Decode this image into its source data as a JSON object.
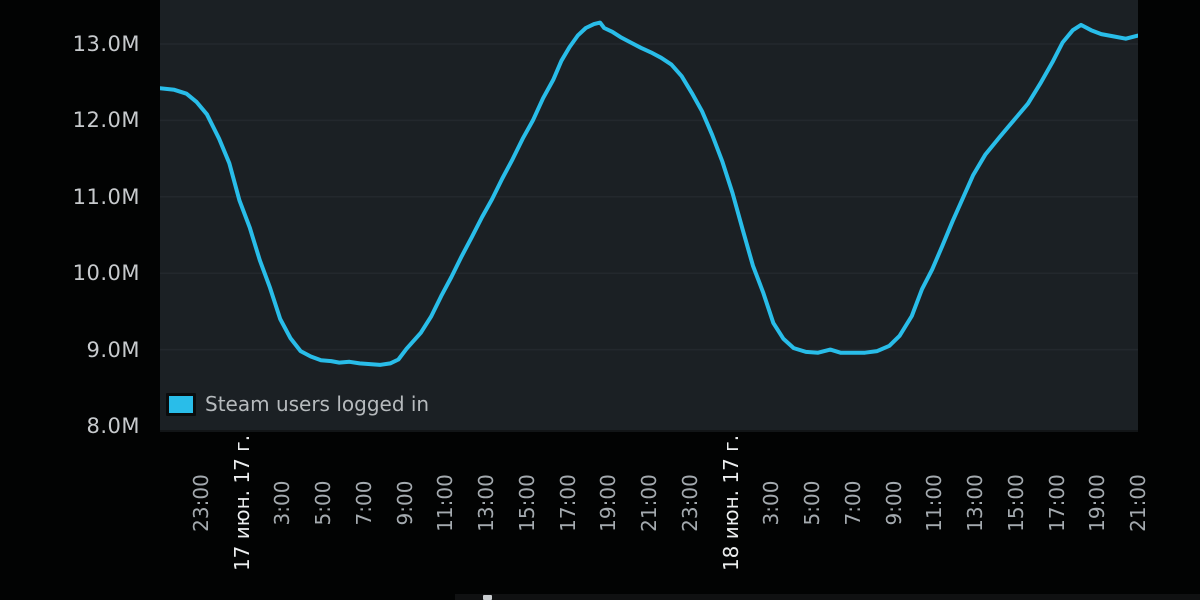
{
  "chart_data": {
    "type": "line",
    "title": "",
    "xlabel": "",
    "ylabel": "",
    "grid": "horizontal",
    "legend_position": "bottom-left-inside",
    "x_unit_hours_origin": "21:00 16 июн. 17 г.",
    "xlim_hours": [
      0,
      48
    ],
    "ylim_millions": [
      8.0,
      13.58
    ],
    "y_tick_labels": [
      "13.0M",
      "12.0M",
      "11.0M",
      "10.0M",
      "9.0M",
      "8.0M"
    ],
    "y_tick_values": [
      13,
      12,
      11,
      10,
      9,
      8
    ],
    "x_ticks": [
      {
        "t": 2,
        "label": "23:00",
        "type": "time"
      },
      {
        "t": 4,
        "label": "17 июн. 17 г.",
        "type": "date"
      },
      {
        "t": 6,
        "label": "3:00",
        "type": "time"
      },
      {
        "t": 8,
        "label": "5:00",
        "type": "time"
      },
      {
        "t": 10,
        "label": "7:00",
        "type": "time"
      },
      {
        "t": 12,
        "label": "9:00",
        "type": "time"
      },
      {
        "t": 14,
        "label": "11:00",
        "type": "time"
      },
      {
        "t": 16,
        "label": "13:00",
        "type": "time"
      },
      {
        "t": 18,
        "label": "15:00",
        "type": "time"
      },
      {
        "t": 20,
        "label": "17:00",
        "type": "time"
      },
      {
        "t": 22,
        "label": "19:00",
        "type": "time"
      },
      {
        "t": 24,
        "label": "21:00",
        "type": "time"
      },
      {
        "t": 26,
        "label": "23:00",
        "type": "time"
      },
      {
        "t": 28,
        "label": "18 июн. 17 г.",
        "type": "date"
      },
      {
        "t": 30,
        "label": "3:00",
        "type": "time"
      },
      {
        "t": 32,
        "label": "5:00",
        "type": "time"
      },
      {
        "t": 34,
        "label": "7:00",
        "type": "time"
      },
      {
        "t": 36,
        "label": "9:00",
        "type": "time"
      },
      {
        "t": 38,
        "label": "11:00",
        "type": "time"
      },
      {
        "t": 40,
        "label": "13:00",
        "type": "time"
      },
      {
        "t": 42,
        "label": "15:00",
        "type": "time"
      },
      {
        "t": 44,
        "label": "17:00",
        "type": "time"
      },
      {
        "t": 46,
        "label": "19:00",
        "type": "time"
      },
      {
        "t": 48,
        "label": "21:00",
        "type": "time"
      }
    ],
    "series": [
      {
        "name": "Steam users logged in",
        "color": "#29bde9",
        "points_hours_vs_millions": [
          [
            0,
            12.42
          ],
          [
            0.7,
            12.4
          ],
          [
            1.3,
            12.35
          ],
          [
            1.8,
            12.24
          ],
          [
            2.3,
            12.08
          ],
          [
            2.9,
            11.76
          ],
          [
            3.4,
            11.44
          ],
          [
            3.9,
            10.95
          ],
          [
            4.4,
            10.6
          ],
          [
            4.9,
            10.17
          ],
          [
            5.4,
            9.81
          ],
          [
            5.9,
            9.4
          ],
          [
            6.4,
            9.15
          ],
          [
            6.9,
            8.98
          ],
          [
            7.4,
            8.91
          ],
          [
            7.9,
            8.86
          ],
          [
            8.4,
            8.85
          ],
          [
            8.8,
            8.83
          ],
          [
            9.3,
            8.84
          ],
          [
            9.8,
            8.82
          ],
          [
            10.3,
            8.81
          ],
          [
            10.8,
            8.8
          ],
          [
            11.3,
            8.82
          ],
          [
            11.7,
            8.87
          ],
          [
            12.1,
            9.01
          ],
          [
            12.8,
            9.22
          ],
          [
            13.3,
            9.43
          ],
          [
            13.8,
            9.7
          ],
          [
            14.3,
            9.95
          ],
          [
            14.8,
            10.22
          ],
          [
            15.3,
            10.47
          ],
          [
            15.8,
            10.73
          ],
          [
            16.3,
            10.97
          ],
          [
            16.8,
            11.24
          ],
          [
            17.3,
            11.49
          ],
          [
            17.8,
            11.76
          ],
          [
            18.3,
            12.0
          ],
          [
            18.8,
            12.29
          ],
          [
            19.3,
            12.53
          ],
          [
            19.7,
            12.78
          ],
          [
            20.1,
            12.96
          ],
          [
            20.5,
            13.11
          ],
          [
            20.9,
            13.21
          ],
          [
            21.3,
            13.26
          ],
          [
            21.6,
            13.28
          ],
          [
            21.8,
            13.21
          ],
          [
            22.2,
            13.16
          ],
          [
            22.6,
            13.09
          ],
          [
            23.1,
            13.02
          ],
          [
            23.6,
            12.95
          ],
          [
            24.1,
            12.89
          ],
          [
            24.6,
            12.82
          ],
          [
            25.1,
            12.73
          ],
          [
            25.6,
            12.58
          ],
          [
            26.1,
            12.36
          ],
          [
            26.6,
            12.12
          ],
          [
            27.1,
            11.81
          ],
          [
            27.6,
            11.46
          ],
          [
            28.1,
            11.05
          ],
          [
            28.6,
            10.57
          ],
          [
            29.1,
            10.1
          ],
          [
            29.6,
            9.75
          ],
          [
            30.1,
            9.35
          ],
          [
            30.6,
            9.14
          ],
          [
            31.1,
            9.02
          ],
          [
            31.7,
            8.97
          ],
          [
            32.3,
            8.96
          ],
          [
            32.9,
            9.0
          ],
          [
            33.4,
            8.96
          ],
          [
            34.0,
            8.96
          ],
          [
            34.6,
            8.96
          ],
          [
            35.2,
            8.98
          ],
          [
            35.8,
            9.05
          ],
          [
            36.3,
            9.18
          ],
          [
            36.9,
            9.44
          ],
          [
            37.4,
            9.79
          ],
          [
            37.9,
            10.05
          ],
          [
            38.4,
            10.36
          ],
          [
            38.9,
            10.68
          ],
          [
            39.4,
            10.98
          ],
          [
            39.9,
            11.28
          ],
          [
            40.5,
            11.55
          ],
          [
            41.2,
            11.78
          ],
          [
            41.9,
            12.0
          ],
          [
            42.6,
            12.22
          ],
          [
            43.2,
            12.48
          ],
          [
            43.8,
            12.76
          ],
          [
            44.3,
            13.02
          ],
          [
            44.8,
            13.18
          ],
          [
            45.2,
            13.25
          ],
          [
            45.7,
            13.18
          ],
          [
            46.2,
            13.13
          ],
          [
            46.8,
            13.1
          ],
          [
            47.4,
            13.07
          ],
          [
            48,
            13.11
          ]
        ]
      }
    ]
  },
  "ui": {
    "legend": {
      "label": "Steam users logged in",
      "swatch_color": "#29bde9"
    },
    "colors": {
      "page_background": "#020303",
      "plot_background": "#1b2024",
      "gridline": "#2b3036",
      "line": "#29bde9",
      "y_label_text": "#c7cacd",
      "x_time_label_text": "#a4aaaf",
      "x_date_label_text": "#eceeef",
      "legend_text": "#b6babd"
    }
  }
}
